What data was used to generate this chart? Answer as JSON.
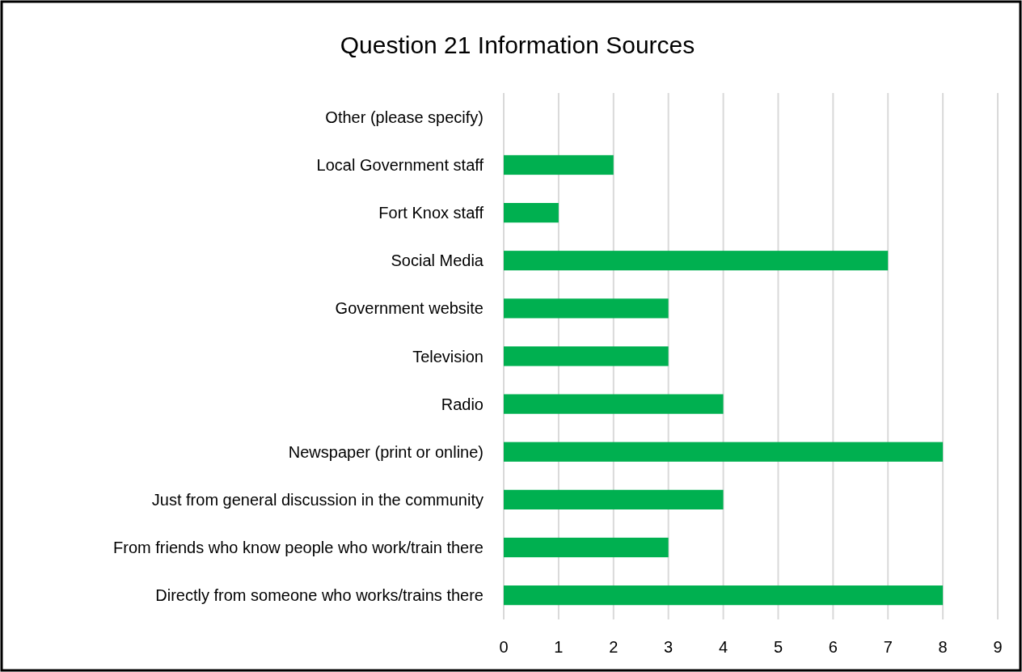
{
  "chart_data": {
    "type": "bar",
    "orientation": "horizontal",
    "title": "Question 21 Information Sources",
    "categories": [
      "Other (please specify)",
      "Local Government staff",
      "Fort Knox staff",
      "Social Media",
      "Government website",
      "Television",
      "Radio",
      "Newspaper (print or online)",
      "Just from general discussion in the community",
      "From friends who know people who work/train there",
      "Directly from someone who works/trains there"
    ],
    "values": [
      0,
      2,
      1,
      7,
      3,
      3,
      4,
      8,
      4,
      3,
      8
    ],
    "color": "#00b050",
    "xlim": [
      0,
      9
    ],
    "xticks": [
      0,
      1,
      2,
      3,
      4,
      5,
      6,
      7,
      8,
      9
    ],
    "grid": "x"
  }
}
